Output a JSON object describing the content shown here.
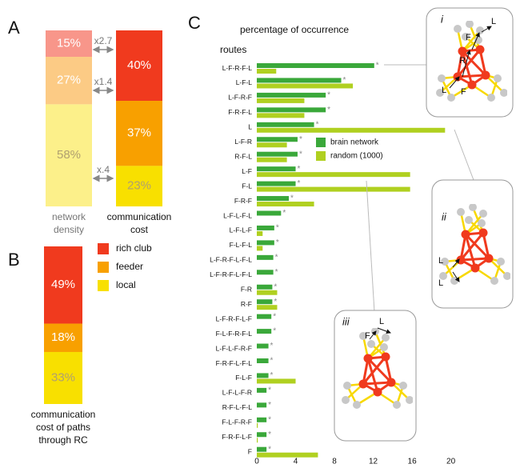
{
  "chart_data": [
    {
      "type": "stacked-bar",
      "panel_label": "A",
      "categories": [
        [
          "network",
          "density"
        ],
        [
          "communication",
          "cost"
        ]
      ],
      "ylim": [
        0,
        100
      ],
      "series": [
        {
          "colors": [
            "#f8968a",
            "#f03a1e"
          ],
          "values": [
            15,
            40
          ],
          "value_labels": [
            "15%",
            "40%"
          ]
        },
        {
          "colors": [
            "#fccb85",
            "#f8a000"
          ],
          "values": [
            27,
            37
          ],
          "value_labels": [
            "27%",
            "37%"
          ]
        },
        {
          "colors": [
            "#fcf08a",
            "#f8e000"
          ],
          "values": [
            58,
            23
          ],
          "value_labels": [
            "58%",
            "23%"
          ]
        }
      ],
      "annotations": [
        "x2.7",
        "x1.4",
        "x.4"
      ]
    },
    {
      "type": "stacked-bar",
      "panel_label": "B",
      "categories": [
        [
          "communication",
          "cost of paths",
          "through RC"
        ]
      ],
      "ylim": [
        0,
        100
      ],
      "series": [
        {
          "name": "rich club",
          "color": "#f03a1e",
          "values": [
            49
          ],
          "value_labels": [
            "49%"
          ]
        },
        {
          "name": "feeder",
          "color": "#f8a000",
          "values": [
            18
          ],
          "value_labels": [
            "18%"
          ]
        },
        {
          "name": "local",
          "color": "#f8e000",
          "values": [
            33
          ],
          "value_labels": [
            "33%"
          ]
        }
      ]
    },
    {
      "type": "hbar",
      "panel_label": "C",
      "title": "percentage of occurrence",
      "y_label": "routes",
      "marker": "*",
      "legend": "center",
      "categories": [
        "L-F-R-F-L",
        "L-F-L",
        "L-F-R-F",
        "F-R-F-L",
        "L",
        "L-F-R",
        "R-F-L",
        "L-F",
        "F-L",
        "F-R-F",
        "L-F-L-F-L",
        "L-F-L-F",
        "F-L-F-L",
        "L-F-R-F-L-F-L",
        "L-F-R-F-L-F-L",
        "F-R",
        "R-F",
        "L-F-R-F-L-F",
        "F-L-F-R-F-L",
        "L-F-L-F-R-F",
        "F-R-F-L-F-L",
        "F-L-F",
        "L-F-L-F-R",
        "R-F-L-F-L",
        "F-L-F-R-F",
        "F-R-F-L-F",
        "F"
      ],
      "series": [
        {
          "name": "brain network",
          "color": "#3aa83a",
          "values": [
            12.1,
            8.7,
            7.1,
            7.1,
            5.9,
            4.2,
            4.2,
            4.0,
            4.0,
            3.3,
            2.5,
            1.8,
            1.8,
            1.7,
            1.7,
            1.6,
            1.6,
            1.5,
            1.5,
            1.2,
            1.2,
            1.2,
            1.0,
            1.0,
            1.0,
            1.0,
            1.0
          ]
        },
        {
          "name": "random (1000)",
          "color": "#b0d020",
          "values": [
            2.0,
            9.9,
            4.9,
            4.9,
            19.4,
            3.1,
            3.1,
            15.8,
            15.8,
            5.9,
            0,
            0.6,
            0.6,
            0,
            0,
            2.1,
            2.1,
            0,
            0,
            0,
            0,
            4.0,
            0,
            0,
            0.1,
            0.1,
            6.3
          ]
        }
      ],
      "xlim": [
        0,
        22
      ],
      "xticks": [
        0,
        4,
        8,
        12,
        16,
        20
      ]
    }
  ],
  "insets": [
    {
      "label": "i",
      "labels": [
        "L",
        "F",
        "R",
        "L",
        "F"
      ]
    },
    {
      "label": "ii",
      "labels": [
        "L",
        "L"
      ]
    },
    {
      "label": "iii",
      "labels": [
        "L",
        "F"
      ]
    }
  ]
}
